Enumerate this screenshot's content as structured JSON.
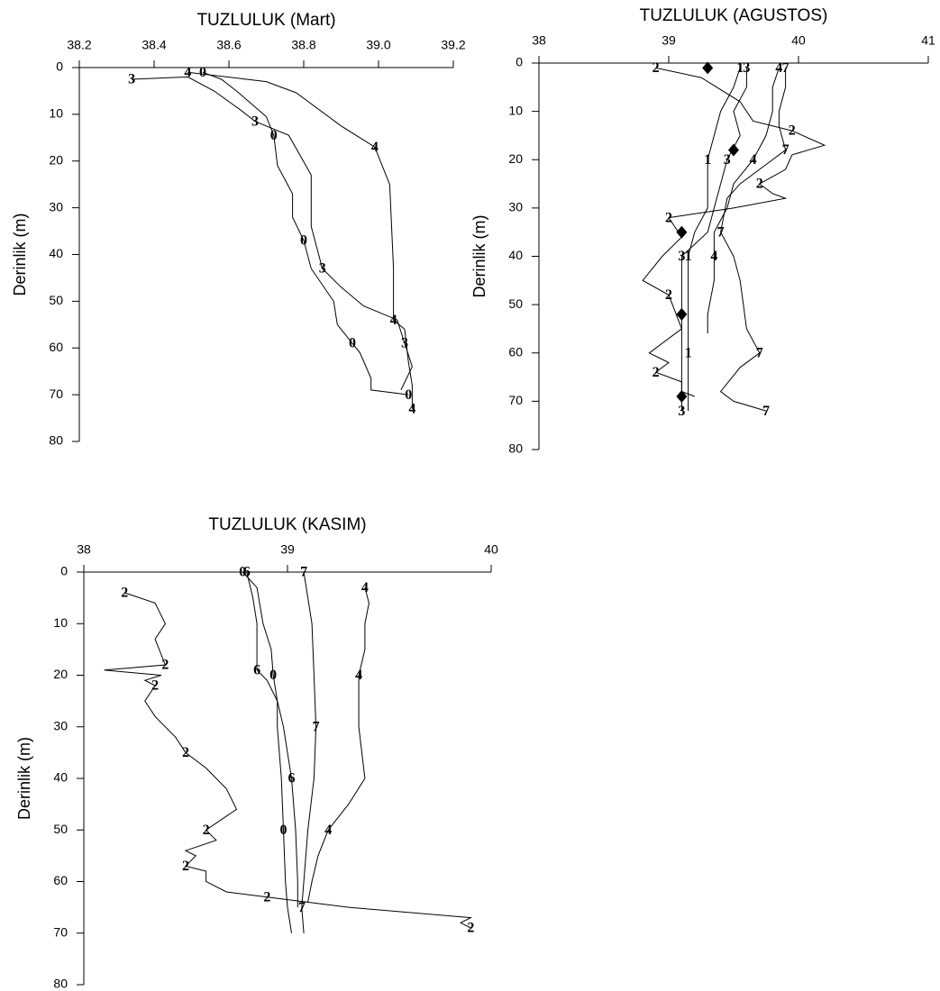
{
  "chart_data": [
    {
      "type": "line",
      "title": "TUZLULUK (Mart)",
      "ylabel": "Derinlik (m)",
      "xlim": [
        38.2,
        39.2
      ],
      "xticks": [
        38.2,
        38.4,
        38.6,
        38.8,
        {
          "value": 39,
          "label": "39.0"
        },
        39.2
      ],
      "ylim": [
        0,
        80
      ],
      "yticks": [
        0,
        10,
        20,
        30,
        40,
        50,
        60,
        70,
        80
      ],
      "y_inverted": true,
      "series": [
        {
          "name": "0",
          "color": "#000000",
          "depth": [
            1,
            2.5,
            5,
            10.5,
            14.5,
            21,
            27,
            32,
            37,
            43,
            50,
            55,
            59,
            61,
            66.5,
            69,
            70
          ],
          "values": [
            38.53,
            38.58,
            38.62,
            38.7,
            38.72,
            38.73,
            38.77,
            38.77,
            38.8,
            38.82,
            38.88,
            38.89,
            38.93,
            38.95,
            38.98,
            38.98,
            39.08
          ]
        },
        {
          "name": "3",
          "color": "#000000",
          "depth": [
            2.5,
            2,
            5,
            9,
            11.5,
            14.5,
            23,
            34,
            43,
            47,
            51,
            54,
            59,
            64,
            69
          ],
          "values": [
            38.34,
            38.49,
            38.56,
            38.63,
            38.67,
            38.76,
            38.82,
            38.82,
            38.85,
            38.9,
            38.96,
            39.05,
            39.07,
            39.09,
            39.06
          ]
        },
        {
          "name": "4",
          "color": "#000000",
          "depth": [
            1,
            3,
            5.4,
            12.5,
            17,
            25,
            43,
            51,
            54,
            56,
            63,
            68,
            73
          ],
          "values": [
            38.49,
            38.7,
            38.78,
            38.9,
            38.99,
            39.03,
            39.04,
            39.04,
            39.04,
            39.07,
            39.08,
            39.09,
            39.09
          ]
        }
      ]
    },
    {
      "type": "line",
      "title": "TUZLULUK (AGUSTOS)",
      "ylabel": "Derinlik (m)",
      "xlim": [
        38,
        41
      ],
      "xticks": [
        38,
        39,
        40,
        41
      ],
      "ylim": [
        0,
        80
      ],
      "yticks": [
        0,
        10,
        20,
        30,
        40,
        50,
        60,
        70,
        80
      ],
      "y_inverted": true,
      "series": [
        {
          "name": "2",
          "color": "#000000",
          "depth": [
            1,
            3,
            8,
            12,
            14,
            17,
            19,
            22,
            25,
            27,
            28,
            30,
            32,
            36,
            40,
            45,
            48,
            55,
            60,
            62,
            64,
            66,
            68,
            69
          ],
          "values": [
            38.9,
            39.25,
            39.55,
            39.65,
            39.95,
            40.2,
            39.95,
            39.9,
            39.7,
            39.8,
            39.9,
            39.5,
            39.0,
            39.1,
            38.95,
            38.8,
            39.0,
            39.1,
            38.85,
            39.0,
            38.9,
            39.1,
            39.1,
            39.2
          ]
        },
        {
          "name": "1",
          "color": "#000000",
          "depth": [
            1,
            5,
            10,
            15,
            20,
            25,
            30,
            35,
            40,
            45,
            50,
            55,
            60,
            65,
            70,
            72
          ],
          "values": [
            39.55,
            39.5,
            39.4,
            39.35,
            39.3,
            39.3,
            39.3,
            39.2,
            39.15,
            39.15,
            39.15,
            39.15,
            39.15,
            39.15,
            39.15,
            39.15
          ]
        },
        {
          "name": "3",
          "color": "#000000",
          "depth": [
            1,
            5,
            10,
            15,
            20,
            25,
            30,
            35,
            40,
            50,
            60,
            70,
            72
          ],
          "values": [
            39.6,
            39.6,
            39.5,
            39.55,
            39.45,
            39.4,
            39.35,
            39.3,
            39.1,
            39.1,
            39.1,
            39.1,
            39.1
          ]
        },
        {
          "name": "4",
          "color": "#000000",
          "depth": [
            1,
            5,
            10,
            15,
            20,
            25,
            30,
            35,
            40,
            45,
            52,
            56
          ],
          "values": [
            39.85,
            39.8,
            39.8,
            39.75,
            39.65,
            39.5,
            39.45,
            39.35,
            39.35,
            39.35,
            39.3,
            39.3
          ]
        },
        {
          "name": "7",
          "color": "#000000",
          "depth": [
            1,
            5,
            10,
            13,
            18,
            22,
            25,
            28,
            35,
            40,
            45,
            55,
            60,
            63,
            68,
            70,
            72
          ],
          "values": [
            39.9,
            39.9,
            39.85,
            39.85,
            39.9,
            39.7,
            39.55,
            39.45,
            39.4,
            39.5,
            39.55,
            39.6,
            39.7,
            39.55,
            39.4,
            39.5,
            39.75
          ]
        },
        {
          "color": "#000000",
          "marker": "diamond",
          "line": false,
          "depth": [
            1,
            18,
            35,
            52,
            69
          ],
          "values": [
            39.3,
            39.5,
            39.1,
            39.1,
            39.1
          ]
        }
      ]
    },
    {
      "type": "line",
      "title": "TUZLULUK (KASIM)",
      "ylabel": "Derinlik (m)",
      "xlim": [
        38,
        40
      ],
      "xticks": [
        38,
        39,
        40
      ],
      "ylim": [
        0,
        80
      ],
      "yticks": [
        0,
        10,
        20,
        30,
        40,
        50,
        60,
        70,
        80
      ],
      "y_inverted": true,
      "series": [
        {
          "name": "2",
          "color": "#000000",
          "depth": [
            4,
            6,
            10,
            13,
            18,
            19,
            20,
            21,
            22,
            25,
            28,
            32,
            35,
            38,
            42,
            46,
            50,
            52,
            54,
            55,
            57,
            58,
            60,
            62,
            63,
            65,
            67,
            68,
            69
          ],
          "values": [
            38.2,
            38.35,
            38.4,
            38.35,
            38.4,
            38.1,
            38.38,
            38.3,
            38.35,
            38.3,
            38.35,
            38.45,
            38.5,
            38.6,
            38.7,
            38.75,
            38.6,
            38.65,
            38.5,
            38.55,
            38.5,
            38.6,
            38.6,
            38.7,
            38.9,
            39.3,
            39.9,
            39.85,
            39.9
          ]
        },
        {
          "name": "0",
          "color": "#000000",
          "depth": [
            0,
            3,
            10,
            15,
            20,
            25,
            30,
            40,
            50,
            60,
            65,
            70
          ],
          "values": [
            38.78,
            38.85,
            38.88,
            38.92,
            38.93,
            38.95,
            38.95,
            38.97,
            38.98,
            38.99,
            39.0,
            39.02
          ]
        },
        {
          "name": "6",
          "color": "#000000",
          "depth": [
            0,
            5,
            10,
            15,
            19,
            21,
            25,
            30,
            40,
            50,
            60,
            65
          ],
          "values": [
            38.8,
            38.83,
            38.85,
            38.85,
            38.85,
            38.9,
            38.95,
            38.98,
            39.02,
            39.04,
            39.05,
            39.05
          ]
        },
        {
          "name": "7",
          "color": "#000000",
          "depth": [
            0,
            5,
            10,
            20,
            30,
            40,
            50,
            60,
            65,
            70
          ],
          "values": [
            39.08,
            39.1,
            39.12,
            39.13,
            39.14,
            39.13,
            39.1,
            39.08,
            39.07,
            39.08
          ]
        },
        {
          "name": "4",
          "color": "#000000",
          "depth": [
            3,
            6,
            10,
            15,
            20,
            30,
            40,
            45,
            50,
            55,
            60,
            64
          ],
          "values": [
            39.38,
            39.4,
            39.38,
            39.38,
            39.35,
            39.35,
            39.38,
            39.3,
            39.2,
            39.15,
            39.12,
            39.1
          ]
        }
      ]
    }
  ]
}
